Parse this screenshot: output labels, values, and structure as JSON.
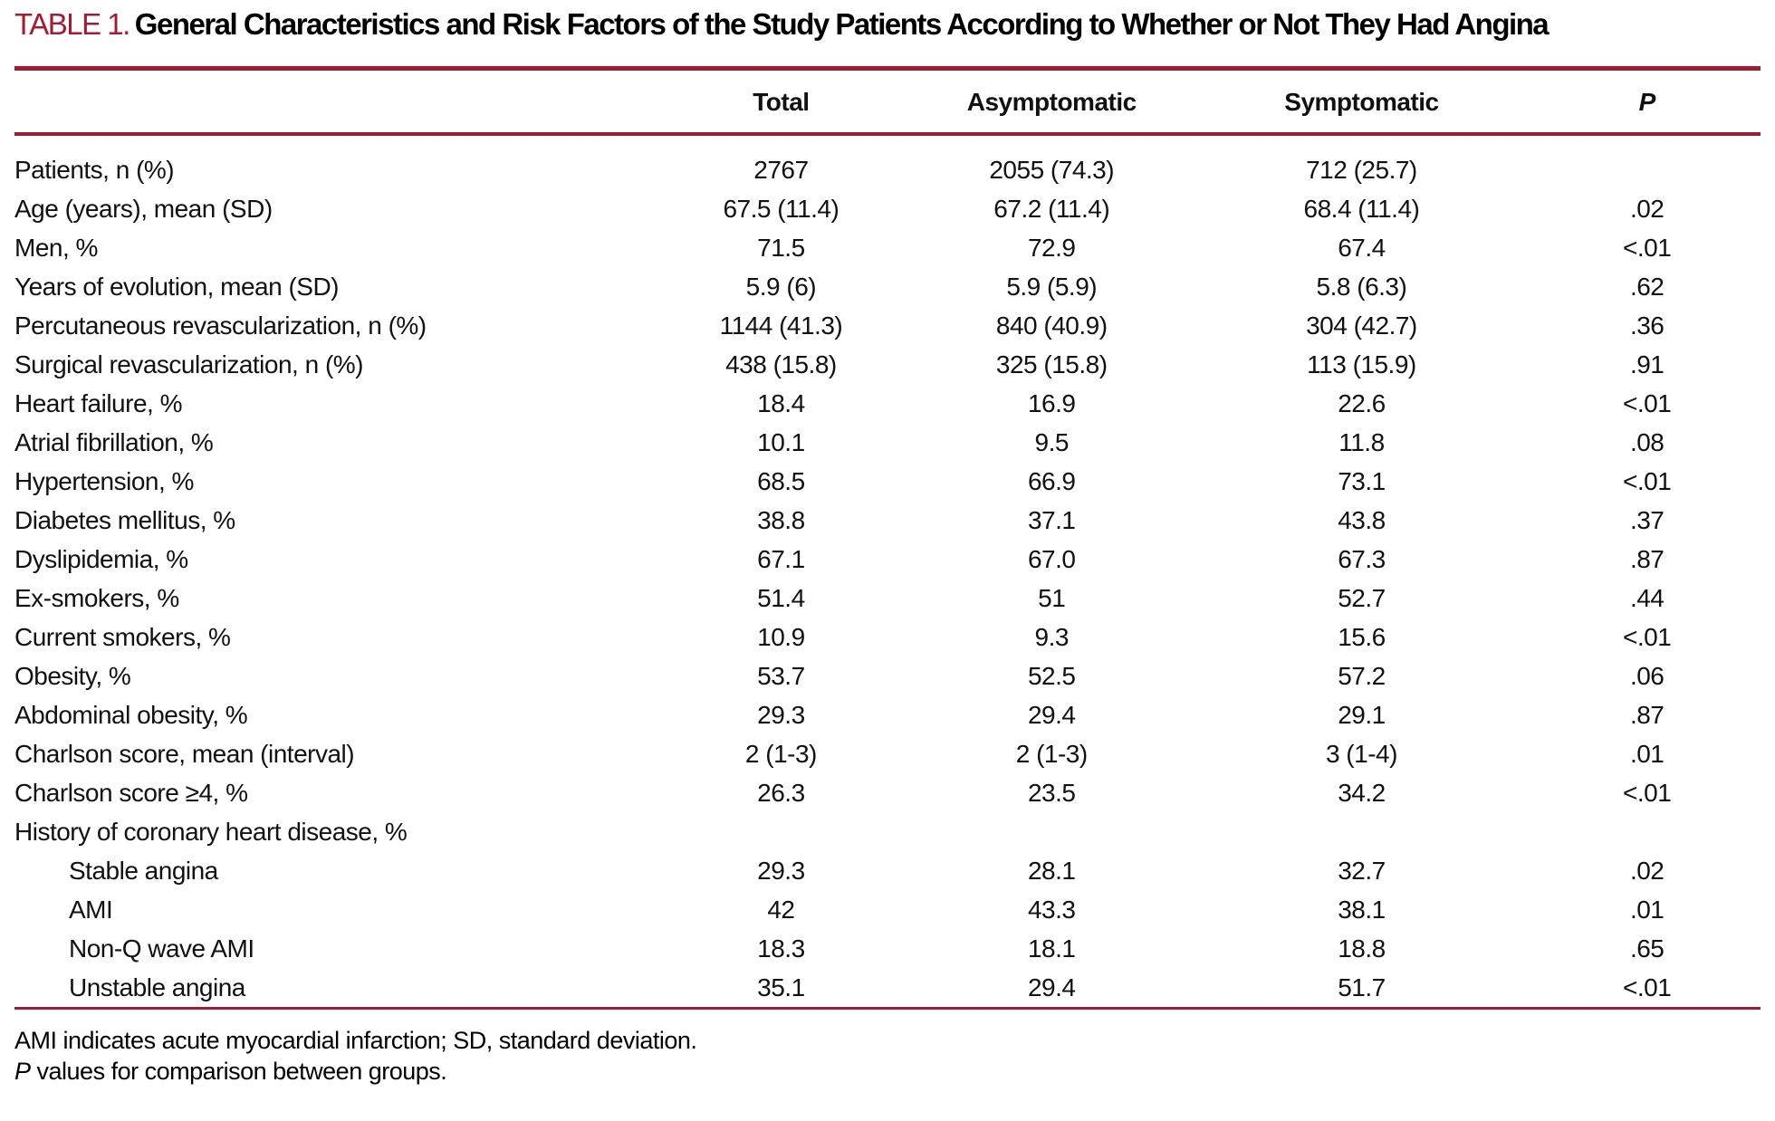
{
  "title": {
    "label": "TABLE 1.",
    "text": "General Characteristics and Risk Factors of the Study Patients According to Whether or Not They Had Angina"
  },
  "colors": {
    "accent": "#9e1e33",
    "title_label": "#9e1e33",
    "text": "#000000"
  },
  "table": {
    "columns": [
      "Total",
      "Asymptomatic",
      "Symptomatic",
      "P"
    ],
    "rows": [
      {
        "label": "Patients, n (%)",
        "indent": false,
        "section": false,
        "values": [
          "2767",
          "2055 (74.3)",
          "712 (25.7)",
          ""
        ]
      },
      {
        "label": "Age (years), mean (SD)",
        "indent": false,
        "section": false,
        "values": [
          "67.5 (11.4)",
          "67.2 (11.4)",
          "68.4 (11.4)",
          ".02"
        ]
      },
      {
        "label": "Men, %",
        "indent": false,
        "section": false,
        "values": [
          "71.5",
          "72.9",
          "67.4",
          "<.01"
        ]
      },
      {
        "label": "Years of evolution, mean (SD)",
        "indent": false,
        "section": false,
        "values": [
          "5.9 (6)",
          "5.9 (5.9)",
          "5.8 (6.3)",
          ".62"
        ]
      },
      {
        "label": "Percutaneous revascularization, n (%)",
        "indent": false,
        "section": false,
        "values": [
          "1144 (41.3)",
          "840 (40.9)",
          "304 (42.7)",
          ".36"
        ]
      },
      {
        "label": "Surgical revascularization, n (%)",
        "indent": false,
        "section": false,
        "values": [
          "438 (15.8)",
          "325 (15.8)",
          "113 (15.9)",
          ".91"
        ]
      },
      {
        "label": "Heart failure, %",
        "indent": false,
        "section": false,
        "values": [
          "18.4",
          "16.9",
          "22.6",
          "<.01"
        ]
      },
      {
        "label": "Atrial fibrillation, %",
        "indent": false,
        "section": false,
        "values": [
          "10.1",
          "9.5",
          "11.8",
          ".08"
        ]
      },
      {
        "label": "Hypertension, %",
        "indent": false,
        "section": false,
        "values": [
          "68.5",
          "66.9",
          "73.1",
          "<.01"
        ]
      },
      {
        "label": "Diabetes mellitus, %",
        "indent": false,
        "section": false,
        "values": [
          "38.8",
          "37.1",
          "43.8",
          ".37"
        ]
      },
      {
        "label": "Dyslipidemia, %",
        "indent": false,
        "section": false,
        "values": [
          "67.1",
          "67.0",
          "67.3",
          ".87"
        ]
      },
      {
        "label": "Ex-smokers, %",
        "indent": false,
        "section": false,
        "values": [
          "51.4",
          "51",
          "52.7",
          ".44"
        ]
      },
      {
        "label": "Current smokers, %",
        "indent": false,
        "section": false,
        "values": [
          "10.9",
          "9.3",
          "15.6",
          "<.01"
        ]
      },
      {
        "label": "Obesity, %",
        "indent": false,
        "section": false,
        "values": [
          "53.7",
          "52.5",
          "57.2",
          ".06"
        ]
      },
      {
        "label": "Abdominal obesity, %",
        "indent": false,
        "section": false,
        "values": [
          "29.3",
          "29.4",
          "29.1",
          ".87"
        ]
      },
      {
        "label": "Charlson score, mean (interval)",
        "indent": false,
        "section": false,
        "values": [
          "2 (1-3)",
          "2 (1-3)",
          "3 (1-4)",
          ".01"
        ]
      },
      {
        "label": "Charlson score ≥4, %",
        "indent": false,
        "section": false,
        "values": [
          "26.3",
          "23.5",
          "34.2",
          "<.01"
        ]
      },
      {
        "label": "History of coronary heart disease, %",
        "indent": false,
        "section": true,
        "values": [
          "",
          "",
          "",
          ""
        ]
      },
      {
        "label": "Stable angina",
        "indent": true,
        "section": false,
        "values": [
          "29.3",
          "28.1",
          "32.7",
          ".02"
        ]
      },
      {
        "label": "AMI",
        "indent": true,
        "section": false,
        "values": [
          "42",
          "43.3",
          "38.1",
          ".01"
        ]
      },
      {
        "label": "Non-Q wave AMI",
        "indent": true,
        "section": false,
        "values": [
          "18.3",
          "18.1",
          "18.8",
          ".65"
        ]
      },
      {
        "label": "Unstable angina",
        "indent": true,
        "section": false,
        "values": [
          "35.1",
          "29.4",
          "51.7",
          "<.01"
        ]
      }
    ]
  },
  "footnotes": {
    "line1": "AMI indicates acute myocardial infarction; SD, standard deviation.",
    "line2_lead": "P",
    "line2_rest": " values for comparison between groups."
  }
}
